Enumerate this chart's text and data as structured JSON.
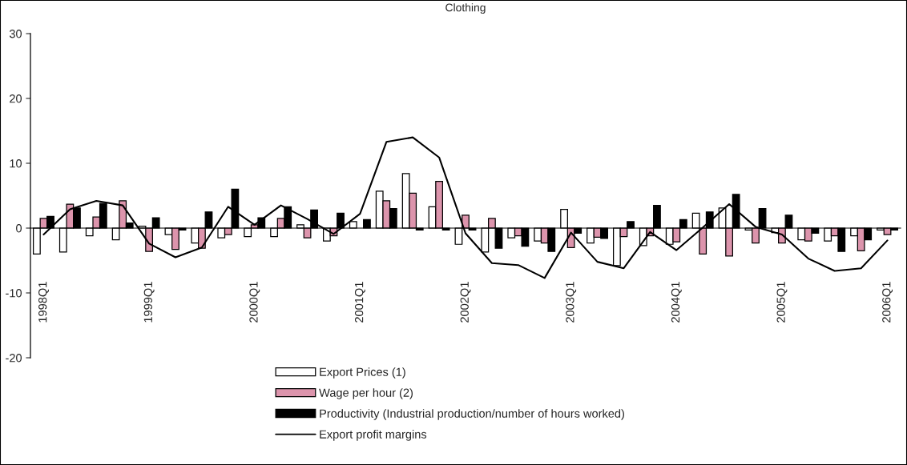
{
  "chart_data": {
    "type": "bar",
    "title": "Clothing",
    "categories": [
      "1998Q1",
      null,
      null,
      null,
      "1999Q1",
      null,
      null,
      null,
      "2000Q1",
      null,
      null,
      null,
      "2001Q1",
      null,
      null,
      null,
      "2002Q1",
      null,
      null,
      null,
      "2003Q1",
      null,
      null,
      null,
      "2004Q1",
      null,
      null,
      null,
      "2005Q1",
      null,
      null,
      null,
      "2006Q1"
    ],
    "series": [
      {
        "name": "Export Prices (1)",
        "color": "#ffffff",
        "values": [
          -4.0,
          -3.7,
          -1.2,
          -1.8,
          0.3,
          -1.0,
          -2.3,
          -1.5,
          -1.3,
          -1.3,
          0.5,
          -2.0,
          1.0,
          5.7,
          8.4,
          3.3,
          -2.5,
          -3.7,
          -1.5,
          -2.0,
          2.9,
          -2.3,
          -5.8,
          -2.7,
          -2.5,
          2.3,
          3.1,
          -0.3,
          -0.7,
          -1.8,
          -2.0,
          -1.2,
          -0.3
        ]
      },
      {
        "name": "Wage per hour (2)",
        "color": "#dc94ac",
        "values": [
          1.5,
          3.7,
          1.7,
          4.2,
          -3.6,
          -3.3,
          -3.1,
          -1.0,
          0.5,
          1.5,
          -1.5,
          -1.2,
          null,
          4.2,
          5.4,
          7.2,
          2.0,
          1.5,
          -1.2,
          -2.3,
          -3.0,
          -1.4,
          -1.3,
          -1.2,
          -2.1,
          -4.0,
          -4.3,
          -2.3,
          -2.3,
          -2.0,
          -1.2,
          -3.5,
          -1.0
        ]
      },
      {
        "name": "Productivity (Industrial production/number of hours worked)",
        "color": "#000000",
        "values": [
          1.8,
          3.1,
          3.8,
          0.8,
          1.6,
          -0.3,
          2.5,
          6.0,
          1.6,
          3.3,
          2.8,
          2.3,
          1.3,
          3.0,
          -0.3,
          -0.3,
          -0.3,
          -3.1,
          -2.8,
          -3.6,
          -0.8,
          -1.6,
          1.0,
          3.5,
          1.3,
          2.5,
          5.2,
          3.0,
          2.0,
          -0.8,
          -3.6,
          -1.8,
          -0.3
        ]
      },
      {
        "name": "Export profit margins",
        "type": "line",
        "color": "#000000",
        "values": [
          -1.0,
          2.9,
          4.2,
          3.5,
          -2.4,
          -4.5,
          -3.0,
          3.3,
          0.5,
          3.5,
          1.4,
          -0.9,
          2.2,
          13.3,
          14.0,
          10.9,
          -0.8,
          -5.4,
          -5.7,
          -7.7,
          -0.7,
          -5.2,
          -6.2,
          -0.6,
          -3.4,
          0.1,
          3.7,
          0.2,
          -1.0,
          -4.7,
          -6.6,
          -6.2,
          -1.9
        ]
      }
    ],
    "ylim": [
      -20,
      30
    ],
    "yticks": [
      -20,
      -10,
      0,
      10,
      20,
      30
    ],
    "legend": "bottom"
  }
}
